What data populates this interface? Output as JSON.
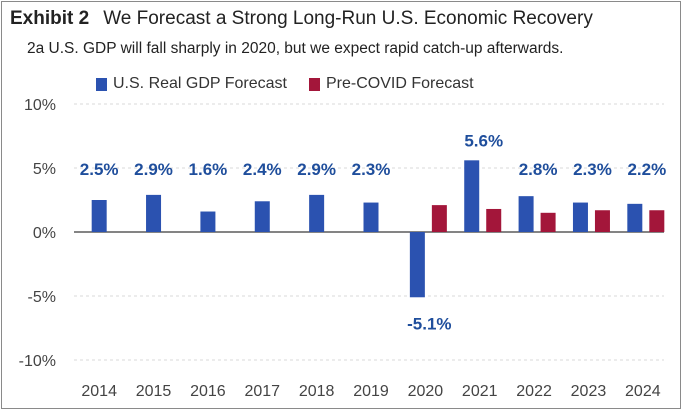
{
  "header": {
    "exhibit": "Exhibit 2",
    "title": "We Forecast a Strong Long-Run U.S. Economic Recovery",
    "subtitle": "2a  U.S. GDP will fall sharply in 2020, but we expect rapid catch-up afterwards."
  },
  "colors": {
    "real_gdp": "#2b52b0",
    "pre_covid": "#a3163a",
    "label": "#1f4e9c"
  },
  "chart_data": {
    "type": "bar",
    "categories": [
      "2014",
      "2015",
      "2016",
      "2017",
      "2018",
      "2019",
      "2020",
      "2021",
      "2022",
      "2023",
      "2024"
    ],
    "series": [
      {
        "name": "U.S. Real GDP Forecast",
        "values": [
          2.5,
          2.9,
          1.6,
          2.4,
          2.9,
          2.3,
          -5.1,
          5.6,
          2.8,
          2.3,
          2.2
        ]
      },
      {
        "name": "Pre-COVID Forecast",
        "values": [
          null,
          null,
          null,
          null,
          null,
          null,
          2.1,
          1.8,
          1.5,
          1.7,
          1.7
        ]
      }
    ],
    "data_labels": [
      "2.5%",
      "2.9%",
      "1.6%",
      "2.4%",
      "2.9%",
      "2.3%",
      "-5.1%",
      "5.6%",
      "2.8%",
      "2.3%",
      "2.2%"
    ],
    "yticks": [
      "10%",
      "5%",
      "0%",
      "-5%",
      "-10%"
    ],
    "ylim": [
      -10,
      10
    ],
    "grid": true,
    "legend": "top-left"
  }
}
